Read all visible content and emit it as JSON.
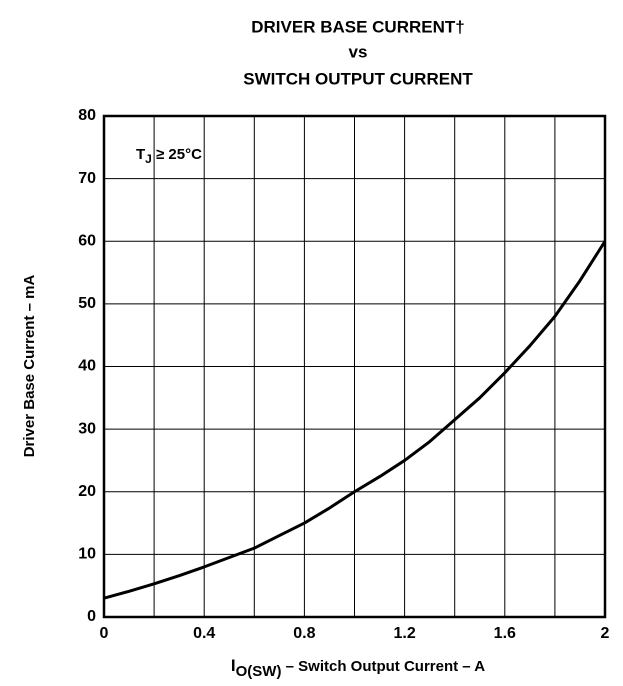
{
  "chart_data": {
    "type": "line",
    "title": [
      "DRIVER BASE CURRENT†",
      "vs",
      "SWITCH OUTPUT CURRENT"
    ],
    "annotation": {
      "text": "T",
      "subscript": "J",
      "suffix": " ≥ 25°C"
    },
    "x_label": {
      "text": "I",
      "subscript": "O(SW)",
      "suffix": " – Switch Output Current – A"
    },
    "y_label": "Driver Base Current – mA",
    "x": [
      0,
      0.1,
      0.2,
      0.3,
      0.4,
      0.5,
      0.6,
      0.7,
      0.8,
      0.9,
      1.0,
      1.1,
      1.2,
      1.3,
      1.4,
      1.5,
      1.6,
      1.7,
      1.8,
      1.9,
      2.0
    ],
    "series": [
      {
        "color": "#000000",
        "values": [
          3,
          4.1,
          5.3,
          6.6,
          8,
          9.5,
          11,
          13,
          15,
          17.4,
          20,
          22.4,
          25,
          28,
          31.5,
          35,
          39,
          43.3,
          48,
          53.7,
          60
        ]
      }
    ],
    "xlim": [
      0,
      2
    ],
    "xticks": [
      0,
      0.4,
      0.8,
      1.2,
      1.6,
      2
    ],
    "xminor_ticks": [
      0.2,
      0.6,
      1.0,
      1.4,
      1.8
    ],
    "ylim": [
      0,
      80
    ],
    "yticks": [
      0,
      10,
      20,
      30,
      40,
      50,
      60,
      70,
      80
    ],
    "grid": true
  }
}
